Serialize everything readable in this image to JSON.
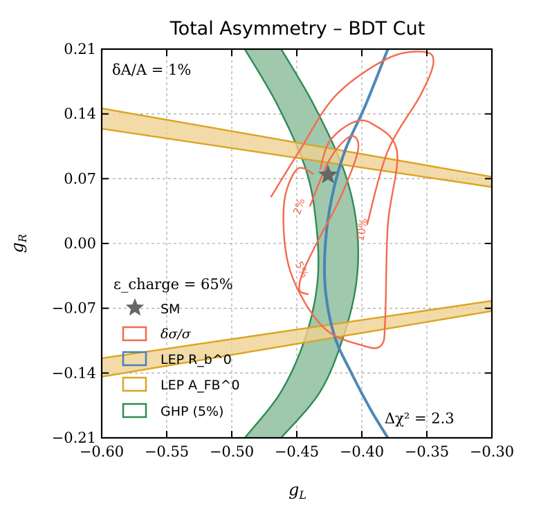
{
  "chart_data": {
    "type": "line",
    "title": "Total Asymmetry – BDT Cut",
    "xlabel": "g_L",
    "ylabel": "g_R",
    "xlim": [
      -0.6,
      -0.3
    ],
    "ylim": [
      -0.21,
      0.21
    ],
    "xticks": [
      -0.6,
      -0.55,
      -0.5,
      -0.45,
      -0.4,
      -0.35,
      -0.3
    ],
    "xtick_labels": [
      "−0.60",
      "−0.55",
      "−0.50",
      "−0.45",
      "−0.40",
      "−0.35",
      "−0.30"
    ],
    "yticks": [
      0.21,
      0.14,
      0.07,
      0.0,
      -0.07,
      -0.14,
      -0.21
    ],
    "ytick_labels": [
      "0.21",
      "0.14",
      "0.07",
      "0.00",
      "−0.07",
      "−0.14",
      "−0.21"
    ],
    "grid": true,
    "annotations": {
      "top_left": "δA/A = 1%",
      "bottom_right": "Δχ² = 2.3",
      "efficiency": "ε_charge = 65%"
    },
    "sm_point": {
      "gL": -0.426,
      "gR": 0.074,
      "label": "SM"
    },
    "colors": {
      "dsigma": "#f46a4e",
      "lep_rb": "#4682b4",
      "lep_afb": "#daa520",
      "lep_afb_fill": "#efd194",
      "ghp": "#2e8b57",
      "ghp_fill": "#9bc5a9",
      "star": "#666666",
      "grid": "#b0b0b0"
    },
    "legend": {
      "position": "lower-left",
      "title": "ε_charge = 65%",
      "entries": [
        {
          "label": "SM",
          "marker": "star"
        },
        {
          "label": "δσ/σ",
          "marker": "box",
          "color": "#f46a4e"
        },
        {
          "label": "LEP R_b^0",
          "marker": "box",
          "color": "#4682b4"
        },
        {
          "label": "LEP A_FB^0",
          "marker": "box",
          "color": "#daa520"
        },
        {
          "label": "GHP (5%)",
          "marker": "box",
          "color": "#2e8b57"
        }
      ]
    },
    "series": [
      {
        "name": "LEP A_FB^0 upper band (top edge)",
        "x": [
          -0.6,
          -0.3
        ],
        "y": [
          0.146,
          0.072
        ]
      },
      {
        "name": "LEP A_FB^0 upper band (bottom edge)",
        "x": [
          -0.6,
          -0.3
        ],
        "y": [
          0.124,
          0.061
        ]
      },
      {
        "name": "LEP A_FB^0 lower band (top edge)",
        "x": [
          -0.6,
          -0.3
        ],
        "y": [
          -0.124,
          -0.062
        ]
      },
      {
        "name": "LEP A_FB^0 lower band (bottom edge)",
        "x": [
          -0.6,
          -0.3
        ],
        "y": [
          -0.144,
          -0.073
        ]
      },
      {
        "name": "GHP (5%) left edge",
        "x": [
          -0.49,
          -0.465,
          -0.443,
          -0.435,
          -0.434,
          -0.443,
          -0.462,
          -0.49
        ],
        "y": [
          0.21,
          0.15,
          0.08,
          0.02,
          -0.04,
          -0.1,
          -0.16,
          -0.21
        ]
      },
      {
        "name": "GHP (5%) right edge",
        "x": [
          -0.462,
          -0.437,
          -0.414,
          -0.404,
          -0.404,
          -0.414,
          -0.432,
          -0.462
        ],
        "y": [
          0.21,
          0.15,
          0.08,
          0.02,
          -0.04,
          -0.1,
          -0.16,
          -0.21
        ]
      },
      {
        "name": "LEP R_b^0",
        "x": [
          -0.38,
          -0.397,
          -0.413,
          -0.423,
          -0.428,
          -0.428,
          -0.421,
          -0.408,
          -0.393,
          -0.38
        ],
        "y": [
          0.21,
          0.15,
          0.1,
          0.05,
          0.0,
          -0.05,
          -0.1,
          -0.14,
          -0.18,
          -0.21
        ]
      },
      {
        "name": "δσ/σ 2%",
        "label": "2%",
        "x": [
          -0.44,
          -0.425,
          -0.41,
          -0.403,
          -0.405,
          -0.418,
          -0.433,
          -0.445,
          -0.448,
          -0.441
        ],
        "y": [
          0.04,
          0.09,
          0.115,
          0.11,
          0.09,
          0.045,
          0.005,
          -0.03,
          -0.05,
          -0.055
        ]
      },
      {
        "name": "δσ/σ 5%",
        "label": "5%",
        "x": [
          -0.437,
          -0.45,
          -0.46,
          -0.455,
          -0.43,
          -0.4,
          -0.385,
          -0.382,
          -0.38,
          -0.373,
          -0.393,
          -0.408,
          -0.425,
          -0.432
        ],
        "y": [
          0.075,
          0.08,
          0.04,
          -0.03,
          -0.09,
          -0.11,
          -0.11,
          -0.08,
          0.02,
          0.1,
          0.13,
          0.13,
          0.11,
          0.08
        ]
      },
      {
        "name": "δσ/σ 10%",
        "label": "10%",
        "x": [
          -0.47,
          -0.448,
          -0.42,
          -0.38,
          -0.352,
          -0.345,
          -0.355,
          -0.38,
          -0.396
        ],
        "y": [
          0.05,
          0.1,
          0.16,
          0.2,
          0.207,
          0.195,
          0.16,
          0.1,
          0.02
        ]
      }
    ]
  }
}
